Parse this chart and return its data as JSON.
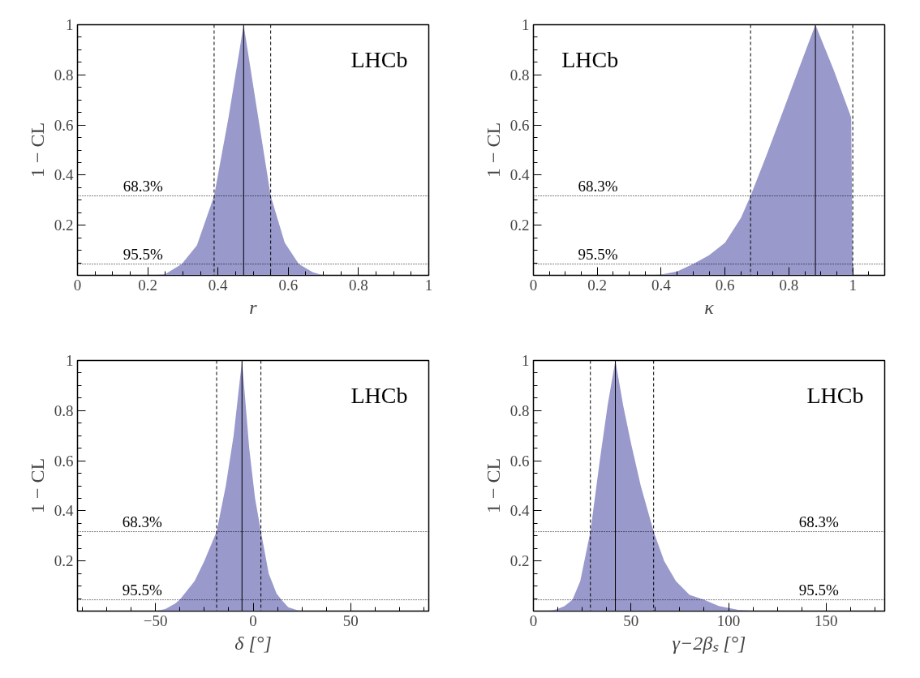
{
  "chart_data": [
    {
      "type": "area",
      "xlabel": "r",
      "ylabel": "1 − CL",
      "annotations": [
        "LHCb",
        {
          "text": "68.3%",
          "x": 0.13,
          "y": 0.317
        },
        {
          "text": "95.5%",
          "x": 0.13,
          "y": 0.045
        }
      ],
      "xlim": [
        0,
        1
      ],
      "xticks": [
        0,
        0.2,
        0.4,
        0.6,
        0.8,
        1
      ],
      "ylim": [
        0,
        1
      ],
      "yticks": [
        0.2,
        0.4,
        0.6,
        0.8,
        1
      ],
      "grid": false,
      "series": [
        {
          "color": "#9999cc",
          "x": [
            0.21,
            0.25,
            0.297,
            0.34,
            0.389,
            0.43,
            0.473,
            0.51,
            0.55,
            0.59,
            0.63,
            0.67,
            0.7
          ],
          "values": [
            0,
            0.005,
            0.045,
            0.12,
            0.317,
            0.63,
            1,
            0.67,
            0.317,
            0.13,
            0.045,
            0.012,
            0
          ]
        }
      ],
      "ref_lines": [
        {
          "axis": "y",
          "value": 0.317,
          "line_style": "dotted",
          "color": "#000000"
        },
        {
          "axis": "y",
          "value": 0.045,
          "line_style": "dotted",
          "color": "#000000"
        },
        {
          "axis": "x",
          "value": 0.389,
          "line_style": "dashed",
          "color": "#000000"
        },
        {
          "axis": "x",
          "value": 0.473,
          "line_style": "solid",
          "color": "#000000"
        },
        {
          "axis": "x",
          "value": 0.55,
          "line_style": "dashed",
          "color": "#000000"
        }
      ]
    },
    {
      "type": "area",
      "xlabel": "κ",
      "ylabel": "1 − CL",
      "annotations": [
        "LHCb",
        {
          "text": "68.3%",
          "x": 0.14,
          "y": 0.317
        },
        {
          "text": "95.5%",
          "x": 0.14,
          "y": 0.045
        }
      ],
      "xlim": [
        0,
        1.1
      ],
      "xticks": [
        0,
        0.2,
        0.4,
        0.6,
        0.8,
        1
      ],
      "ylim": [
        0,
        1
      ],
      "yticks": [
        0.2,
        0.4,
        0.6,
        0.8,
        1
      ],
      "grid": false,
      "series": [
        {
          "color": "#9999cc",
          "x": [
            0.355,
            0.4,
            0.45,
            0.5,
            0.55,
            0.6,
            0.65,
            0.68,
            0.73,
            0.78,
            0.83,
            0.883,
            0.94,
            0.995,
            1.0
          ],
          "values": [
            0,
            0.003,
            0.015,
            0.045,
            0.08,
            0.13,
            0.23,
            0.317,
            0.48,
            0.65,
            0.82,
            1,
            0.82,
            0.63,
            0
          ]
        }
      ],
      "ref_lines": [
        {
          "axis": "y",
          "value": 0.317,
          "line_style": "dotted",
          "color": "#000000"
        },
        {
          "axis": "y",
          "value": 0.045,
          "line_style": "dotted",
          "color": "#000000"
        },
        {
          "axis": "x",
          "value": 0.68,
          "line_style": "dashed",
          "color": "#000000"
        },
        {
          "axis": "x",
          "value": 0.883,
          "line_style": "solid",
          "color": "#000000"
        },
        {
          "axis": "x",
          "value": 1.0,
          "line_style": "dashed",
          "color": "#000000"
        }
      ]
    },
    {
      "type": "area",
      "xlabel": "δ [°]",
      "ylabel": "1 − CL",
      "annotations": [
        "LHCb",
        {
          "text": "68.3%",
          "x": -67,
          "y": 0.317
        },
        {
          "text": "95.5%",
          "x": -67,
          "y": 0.045
        }
      ],
      "xlim": [
        -90,
        90
      ],
      "xticks": [
        -50,
        0,
        50
      ],
      "ylim": [
        0,
        1
      ],
      "yticks": [
        0.2,
        0.4,
        0.6,
        0.8,
        1
      ],
      "grid": false,
      "series": [
        {
          "color": "#9999cc",
          "x": [
            -50,
            -45,
            -40,
            -37.6,
            -30,
            -25,
            -18.7,
            -14,
            -10,
            -5.7,
            -2,
            1,
            4,
            8,
            12,
            14.5,
            18,
            24
          ],
          "values": [
            0,
            0.008,
            0.03,
            0.045,
            0.12,
            0.2,
            0.317,
            0.5,
            0.7,
            1,
            0.65,
            0.45,
            0.317,
            0.15,
            0.07,
            0.045,
            0.015,
            0
          ]
        }
      ],
      "ref_lines": [
        {
          "axis": "y",
          "value": 0.317,
          "line_style": "dotted",
          "color": "#000000"
        },
        {
          "axis": "y",
          "value": 0.045,
          "line_style": "dotted",
          "color": "#000000"
        },
        {
          "axis": "x",
          "value": -18.7,
          "line_style": "dashed",
          "color": "#000000"
        },
        {
          "axis": "x",
          "value": -5.7,
          "line_style": "solid",
          "color": "#000000"
        },
        {
          "axis": "x",
          "value": 4,
          "line_style": "dashed",
          "color": "#000000"
        }
      ]
    },
    {
      "type": "area",
      "xlabel": "γ−2βₛ [°]",
      "ylabel": "1 − CL",
      "annotations": [
        "LHCb",
        {
          "text": "68.3%",
          "x": 136,
          "y": 0.317
        },
        {
          "text": "95.5%",
          "x": 136,
          "y": 0.045
        }
      ],
      "xlim": [
        0,
        180
      ],
      "xticks": [
        0,
        50,
        100,
        150
      ],
      "ylim": [
        0,
        1
      ],
      "yticks": [
        0.2,
        0.4,
        0.6,
        0.8,
        1
      ],
      "grid": false,
      "series": [
        {
          "color": "#9999cc",
          "x": [
            0,
            8,
            12,
            16,
            20,
            24,
            29.2,
            34,
            38,
            42,
            46,
            50,
            55,
            61.6,
            67,
            73,
            80,
            87.4,
            95,
            105,
            115
          ],
          "values": [
            0,
            0.001,
            0.007,
            0.02,
            0.045,
            0.12,
            0.317,
            0.6,
            0.82,
            1,
            0.82,
            0.67,
            0.5,
            0.317,
            0.2,
            0.12,
            0.065,
            0.045,
            0.02,
            0.005,
            0
          ]
        }
      ],
      "ref_lines": [
        {
          "axis": "y",
          "value": 0.317,
          "line_style": "dotted",
          "color": "#000000"
        },
        {
          "axis": "y",
          "value": 0.045,
          "line_style": "dotted",
          "color": "#000000"
        },
        {
          "axis": "x",
          "value": 29.2,
          "line_style": "dashed",
          "color": "#000000"
        },
        {
          "axis": "x",
          "value": 42,
          "line_style": "solid",
          "color": "#000000"
        },
        {
          "axis": "x",
          "value": 61.6,
          "line_style": "dashed",
          "color": "#000000"
        }
      ]
    }
  ]
}
